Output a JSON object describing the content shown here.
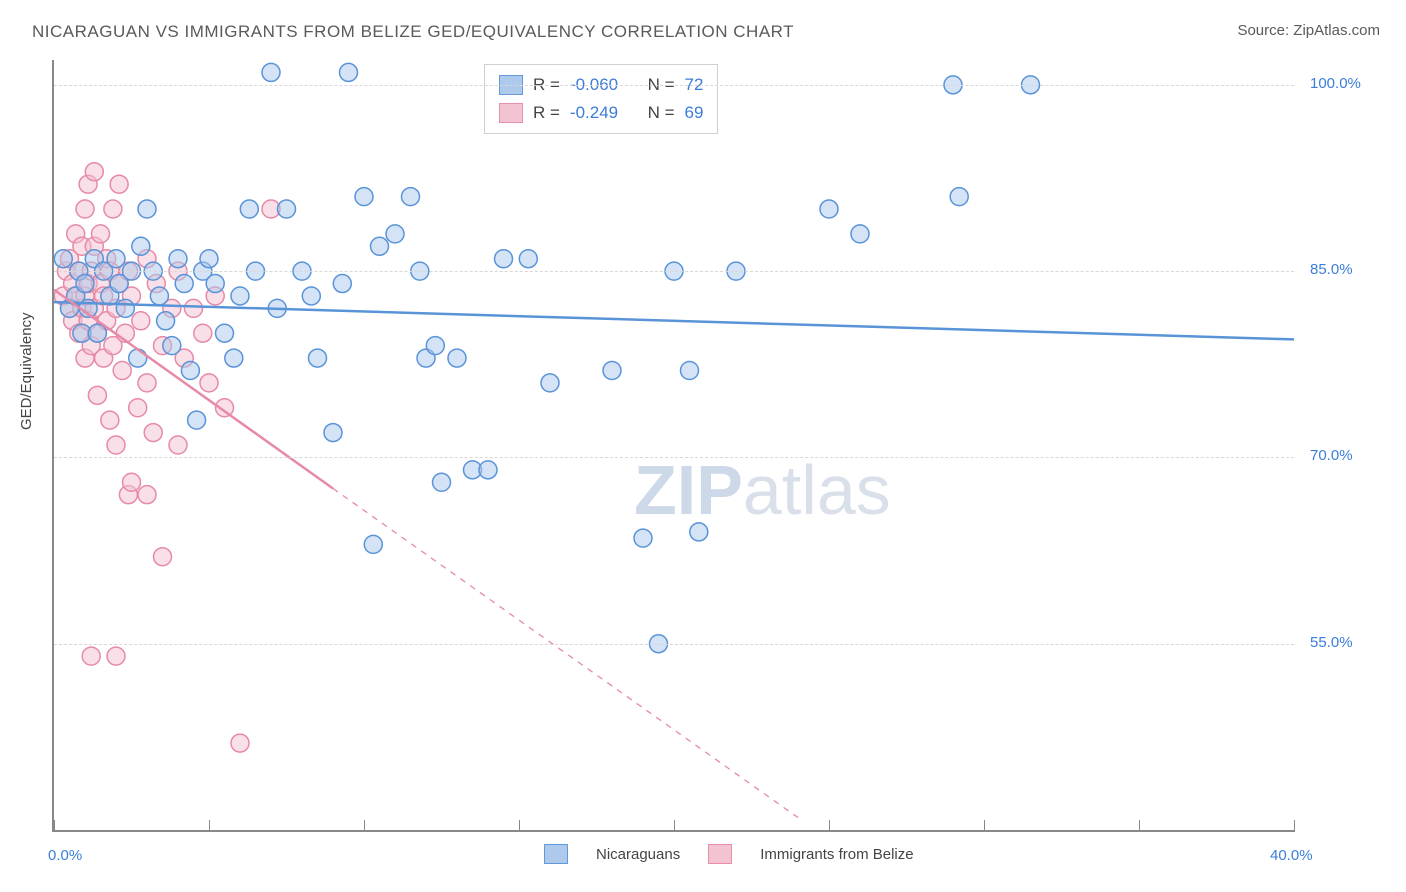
{
  "title": "NICARAGUAN VS IMMIGRANTS FROM BELIZE GED/EQUIVALENCY CORRELATION CHART",
  "source": "Source: ZipAtlas.com",
  "ytitle": "GED/Equivalency",
  "watermark_zip": "ZIP",
  "watermark_atlas": "atlas",
  "chart": {
    "type": "scatter",
    "xlim": [
      0,
      40
    ],
    "ylim": [
      40,
      102
    ],
    "xtick_positions": [
      0,
      5,
      10,
      15,
      20,
      25,
      30,
      35,
      40
    ],
    "xlabels_shown": {
      "0": "0.0%",
      "40": "40.0%"
    },
    "ytick_gridlines": [
      55,
      70,
      85,
      100
    ],
    "ylabels": {
      "55": "55.0%",
      "70": "70.0%",
      "85": "85.0%",
      "100": "100.0%"
    },
    "background_color": "#ffffff",
    "grid_color": "#d8d8d8",
    "axis_color": "#888888",
    "label_color": "#3b7dd8",
    "title_color": "#5a5a5a",
    "title_fontsize": 17,
    "label_fontsize": 15,
    "marker_radius": 9,
    "marker_stroke_width": 1.5,
    "marker_fill_opacity": 0.25,
    "trend_line_width": 2.5
  },
  "series": [
    {
      "name": "Nicaraguans",
      "color_stroke": "#5a94d8",
      "color_fill": "#a9c7ec",
      "R": "-0.060",
      "N": "72",
      "trend": {
        "x1": 0,
        "y1": 82.5,
        "x2": 40,
        "y2": 79.5,
        "dash": false
      },
      "points": [
        [
          0.3,
          86
        ],
        [
          0.5,
          82
        ],
        [
          0.7,
          83
        ],
        [
          0.8,
          85
        ],
        [
          0.9,
          80
        ],
        [
          1.0,
          84
        ],
        [
          1.1,
          82
        ],
        [
          1.3,
          86
        ],
        [
          1.4,
          80
        ],
        [
          1.6,
          85
        ],
        [
          1.8,
          83
        ],
        [
          2.0,
          86
        ],
        [
          2.1,
          84
        ],
        [
          2.3,
          82
        ],
        [
          2.5,
          85
        ],
        [
          2.7,
          78
        ],
        [
          2.8,
          87
        ],
        [
          3.0,
          90
        ],
        [
          3.2,
          85
        ],
        [
          3.4,
          83
        ],
        [
          3.6,
          81
        ],
        [
          3.8,
          79
        ],
        [
          4.0,
          86
        ],
        [
          4.2,
          84
        ],
        [
          4.4,
          77
        ],
        [
          4.6,
          73
        ],
        [
          4.8,
          85
        ],
        [
          5.0,
          86
        ],
        [
          5.2,
          84
        ],
        [
          5.5,
          80
        ],
        [
          5.8,
          78
        ],
        [
          6.0,
          83
        ],
        [
          6.3,
          90
        ],
        [
          6.5,
          85
        ],
        [
          7.0,
          101
        ],
        [
          7.2,
          82
        ],
        [
          7.5,
          90
        ],
        [
          8.0,
          85
        ],
        [
          8.3,
          83
        ],
        [
          8.5,
          78
        ],
        [
          9.0,
          72
        ],
        [
          9.3,
          84
        ],
        [
          9.5,
          101
        ],
        [
          10.0,
          91
        ],
        [
          10.3,
          63
        ],
        [
          10.5,
          87
        ],
        [
          11.0,
          88
        ],
        [
          11.5,
          91
        ],
        [
          11.8,
          85
        ],
        [
          12.0,
          78
        ],
        [
          12.3,
          79
        ],
        [
          12.5,
          68
        ],
        [
          13.0,
          78
        ],
        [
          13.5,
          69
        ],
        [
          14.0,
          69
        ],
        [
          14.5,
          86
        ],
        [
          15.3,
          86
        ],
        [
          16.0,
          76
        ],
        [
          18.0,
          77
        ],
        [
          19.0,
          63.5
        ],
        [
          19.5,
          55
        ],
        [
          20.0,
          85
        ],
        [
          20.5,
          77
        ],
        [
          20.8,
          64
        ],
        [
          22.0,
          85
        ],
        [
          25.0,
          90
        ],
        [
          26.0,
          88
        ],
        [
          29.0,
          100
        ],
        [
          29.2,
          91
        ],
        [
          31.5,
          100
        ]
      ]
    },
    {
      "name": "Immigrants from Belize",
      "color_stroke": "#e68aa7",
      "color_fill": "#f4c0d0",
      "R": "-0.249",
      "N": "69",
      "trend": {
        "x1": 0,
        "y1": 83.5,
        "x2": 9,
        "y2": 67.5,
        "dash": false
      },
      "trend_ext": {
        "x1": 9,
        "y1": 67.5,
        "x2": 24,
        "y2": 41,
        "dash": true
      },
      "points": [
        [
          0.3,
          83
        ],
        [
          0.4,
          85
        ],
        [
          0.5,
          82
        ],
        [
          0.5,
          86
        ],
        [
          0.6,
          81
        ],
        [
          0.6,
          84
        ],
        [
          0.7,
          83
        ],
        [
          0.7,
          88
        ],
        [
          0.8,
          80
        ],
        [
          0.8,
          85
        ],
        [
          0.9,
          82
        ],
        [
          0.9,
          87
        ],
        [
          1.0,
          78
        ],
        [
          1.0,
          83
        ],
        [
          1.0,
          90
        ],
        [
          1.1,
          81
        ],
        [
          1.1,
          84
        ],
        [
          1.1,
          92
        ],
        [
          1.2,
          79
        ],
        [
          1.2,
          85
        ],
        [
          1.3,
          82
        ],
        [
          1.3,
          87
        ],
        [
          1.3,
          93
        ],
        [
          1.4,
          75
        ],
        [
          1.4,
          80
        ],
        [
          1.5,
          84
        ],
        [
          1.5,
          88
        ],
        [
          1.6,
          78
        ],
        [
          1.6,
          83
        ],
        [
          1.7,
          81
        ],
        [
          1.7,
          86
        ],
        [
          1.8,
          73
        ],
        [
          1.8,
          85
        ],
        [
          1.9,
          79
        ],
        [
          1.9,
          90
        ],
        [
          2.0,
          71
        ],
        [
          2.0,
          82
        ],
        [
          2.1,
          84
        ],
        [
          2.1,
          92
        ],
        [
          2.2,
          77
        ],
        [
          2.3,
          80
        ],
        [
          2.4,
          67
        ],
        [
          2.4,
          85
        ],
        [
          2.5,
          68
        ],
        [
          2.5,
          83
        ],
        [
          2.7,
          74
        ],
        [
          2.8,
          81
        ],
        [
          3.0,
          67
        ],
        [
          3.0,
          76
        ],
        [
          3.0,
          86
        ],
        [
          3.2,
          72
        ],
        [
          3.3,
          84
        ],
        [
          3.5,
          62
        ],
        [
          3.5,
          79
        ],
        [
          3.8,
          82
        ],
        [
          4.0,
          71
        ],
        [
          4.0,
          85
        ],
        [
          4.2,
          78
        ],
        [
          4.5,
          82
        ],
        [
          4.8,
          80
        ],
        [
          5.0,
          76
        ],
        [
          5.2,
          83
        ],
        [
          5.5,
          74
        ],
        [
          6.0,
          47
        ],
        [
          7.0,
          90
        ],
        [
          1.2,
          54
        ],
        [
          2.0,
          54
        ]
      ]
    }
  ],
  "legend": {
    "s1": "Nicaraguans",
    "s2": "Immigrants from Belize"
  },
  "stats_labels": {
    "R": "R =",
    "N": "N ="
  }
}
